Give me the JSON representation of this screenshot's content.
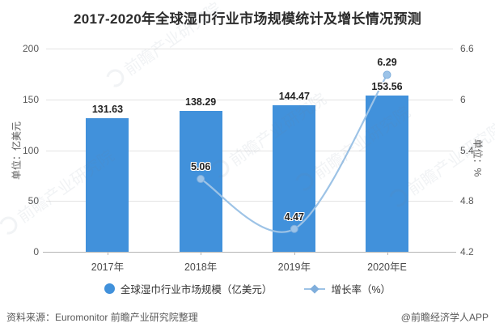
{
  "title": "2017-2020年全球湿巾行业市场规模统计及增长情况预测",
  "chart_data": {
    "type": "combo-bar-line",
    "categories": [
      "2017年",
      "2018年",
      "2019年",
      "2020年E"
    ],
    "series": [
      {
        "name": "全球湿巾行业市场规模（亿美元）",
        "type": "bar",
        "axis": "left",
        "color": "#4191DB",
        "values": [
          131.63,
          138.29,
          144.47,
          153.56
        ]
      },
      {
        "name": "增长率（%）",
        "type": "line",
        "axis": "right",
        "color": "#9DC3E6",
        "marker_fill": "#9CC3E8",
        "marker_stroke": "#7FAEDC",
        "values": [
          null,
          5.06,
          4.47,
          6.29
        ]
      }
    ],
    "left_axis": {
      "label": "单位：亿美元",
      "range": [
        0,
        200
      ],
      "ticks": [
        0,
        50,
        100,
        150,
        200
      ]
    },
    "right_axis": {
      "label": "单位：%",
      "range": [
        4.2,
        6.6
      ],
      "ticks": [
        4.2,
        4.8,
        5.4,
        6,
        6.6
      ]
    },
    "grid": true,
    "legend_position": "bottom"
  },
  "footer": {
    "source": "资料来源：Euromonitor 前瞻产业研究院整理",
    "credit": "@前瞻经济学人APP"
  },
  "watermark": {
    "text": "前瞻产业研究院"
  }
}
